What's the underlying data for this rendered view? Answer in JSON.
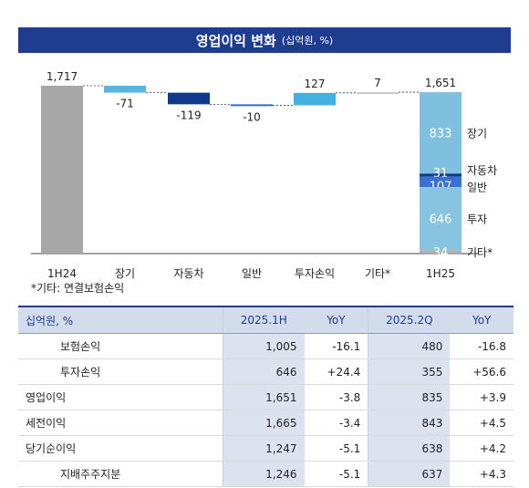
{
  "header": {
    "title": "영업이익 변화",
    "unit": "(십억원, %)"
  },
  "chart_data": {
    "type": "bar",
    "title": "영업이익 변화",
    "subtitle": "(십억원, %)",
    "categories": [
      "1H24",
      "장기",
      "자동차",
      "일반",
      "투자손익",
      "기타*",
      "1H25"
    ],
    "values": [
      1717,
      -71,
      -119,
      -10,
      127,
      7,
      1651
    ],
    "value_labels": [
      "1,717",
      "-71",
      "-119",
      "-10",
      "127",
      "7",
      "1,651"
    ],
    "stack_1H25": [
      {
        "name": "장기",
        "value": 833,
        "color": "#7fbfe0"
      },
      {
        "name": "자동차",
        "value": 31,
        "color": "#0f3a8c"
      },
      {
        "name": "일반",
        "value": 107,
        "color": "#3b6fd1"
      },
      {
        "name": "투자",
        "value": 646,
        "color": "#88c4e2"
      },
      {
        "name": "기타*",
        "value": 34,
        "color": "#b0b0b0"
      }
    ],
    "colors": {
      "base": "#a6a6a6",
      "장기": "#5ab4dc",
      "자동차": "#0f3a8c",
      "일반": "#2e6fc9",
      "투자손익": "#42b0e0",
      "기타*": "#c8c8c8"
    },
    "ylim": [
      0,
      1900
    ]
  },
  "footnote": "*기타: 연결보험손익",
  "table": {
    "headers": [
      "십억원, %",
      "2025.1H",
      "YoY",
      "2025.2Q",
      "YoY"
    ],
    "rows": [
      {
        "label": "보험손익",
        "indent": true,
        "v1": "1,005",
        "y1": "-16.1",
        "v2": "480",
        "y2": "-16.8"
      },
      {
        "label": "투자손익",
        "indent": true,
        "v1": "646",
        "y1": "+24.4",
        "v2": "355",
        "y2": "+56.6"
      },
      {
        "label": "영업이익",
        "indent": false,
        "v1": "1,651",
        "y1": "-3.8",
        "v2": "835",
        "y2": "+3.9"
      },
      {
        "label": "세전이익",
        "indent": false,
        "v1": "1,665",
        "y1": "-3.4",
        "v2": "843",
        "y2": "+4.5"
      },
      {
        "label": "당기순이익",
        "indent": false,
        "v1": "1,247",
        "y1": "-5.1",
        "v2": "638",
        "y2": "+4.2"
      },
      {
        "label": "지배주주지분",
        "indent": true,
        "v1": "1,246",
        "y1": "-5.1",
        "v2": "637",
        "y2": "+4.3"
      }
    ]
  }
}
